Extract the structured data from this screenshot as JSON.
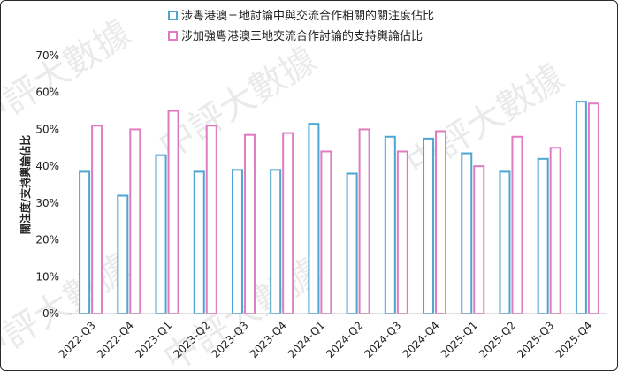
{
  "chart_data": {
    "type": "bar",
    "categories": [
      "2022-Q3",
      "2022-Q4",
      "2023-Q1",
      "2023-Q2",
      "2023-Q3",
      "2023-Q4",
      "2024-Q1",
      "2024-Q2",
      "2024-Q3",
      "2024-Q4",
      "2025-Q1",
      "2025-Q2",
      "2025-Q3",
      "2025-Q4"
    ],
    "series": [
      {
        "name": "涉粵港澳三地討論中與交流合作相關的關注度佔比",
        "color": "#4da6d1",
        "values": [
          38.5,
          32,
          43,
          38.5,
          39,
          39,
          51.5,
          38,
          48,
          47.5,
          43.5,
          38.5,
          42,
          57.5
        ]
      },
      {
        "name": "涉加強粵港澳三地交流合作討論的支持輿論佔比",
        "color": "#e07bc2",
        "values": [
          51,
          50,
          55,
          51,
          48.5,
          49,
          44,
          50,
          44,
          49.5,
          40,
          48,
          45,
          57
        ]
      }
    ],
    "ylabel": "關注度/支持輿論佔比",
    "ylim": [
      0,
      70
    ],
    "yticks": [
      "0%",
      "10%",
      "20%",
      "30%",
      "40%",
      "50%",
      "60%",
      "70%"
    ],
    "grid": false,
    "legend_position": "top-center",
    "watermark": "中評大數據"
  }
}
